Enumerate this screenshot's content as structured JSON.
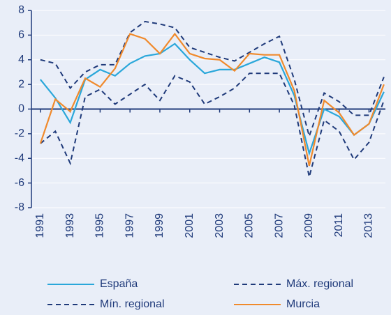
{
  "chart_data": {
    "type": "line",
    "x": [
      1991,
      1992,
      1993,
      1994,
      1995,
      1996,
      1997,
      1998,
      1999,
      2000,
      2001,
      2002,
      2003,
      2004,
      2005,
      2006,
      2007,
      2008,
      2009,
      2010,
      2011,
      2012,
      2013,
      2014
    ],
    "series": [
      {
        "name": "España",
        "color": "#2aa7da",
        "dash": false,
        "values": [
          2.4,
          0.9,
          -1.1,
          2.4,
          3.2,
          2.7,
          3.7,
          4.3,
          4.5,
          5.3,
          4.0,
          2.9,
          3.2,
          3.2,
          3.7,
          4.2,
          3.8,
          1.1,
          -3.6,
          0.0,
          -0.6,
          -2.1,
          -1.2,
          1.4
        ]
      },
      {
        "name": "Máx. regional",
        "color": "#1f3a7a",
        "dash": true,
        "values": [
          4.0,
          3.7,
          1.7,
          3.0,
          3.6,
          3.6,
          6.2,
          7.1,
          6.9,
          6.6,
          5.0,
          4.6,
          4.2,
          3.9,
          4.6,
          5.3,
          5.9,
          2.4,
          -2.2,
          1.3,
          0.6,
          -0.5,
          -0.5,
          2.6
        ]
      },
      {
        "name": "Mín. regional",
        "color": "#1f3a7a",
        "dash": true,
        "values": [
          -2.8,
          -1.8,
          -4.4,
          1.0,
          1.6,
          0.4,
          1.2,
          2.0,
          0.7,
          2.7,
          2.2,
          0.4,
          1.0,
          1.7,
          2.9,
          2.9,
          2.9,
          0.3,
          -5.5,
          -0.9,
          -1.8,
          -4.1,
          -2.7,
          0.7
        ]
      },
      {
        "name": "Murcia",
        "color": "#f08a2c",
        "dash": false,
        "values": [
          -2.8,
          0.8,
          -0.2,
          2.5,
          1.8,
          3.3,
          6.1,
          5.7,
          4.5,
          6.1,
          4.5,
          4.1,
          4.0,
          3.1,
          4.5,
          4.4,
          4.4,
          1.5,
          -4.6,
          0.7,
          -0.3,
          -2.1,
          -1.2,
          2.0
        ]
      }
    ],
    "xlim": [
      1990.4,
      2014.1
    ],
    "xticks": [
      1991,
      1993,
      1995,
      1997,
      1999,
      2001,
      2003,
      2005,
      2007,
      2009,
      2011,
      2013
    ],
    "ylim": [
      -8,
      8
    ],
    "yticks": [
      -8,
      -6,
      -4,
      -2,
      0,
      2,
      4,
      6,
      8
    ],
    "grid": true
  }
}
